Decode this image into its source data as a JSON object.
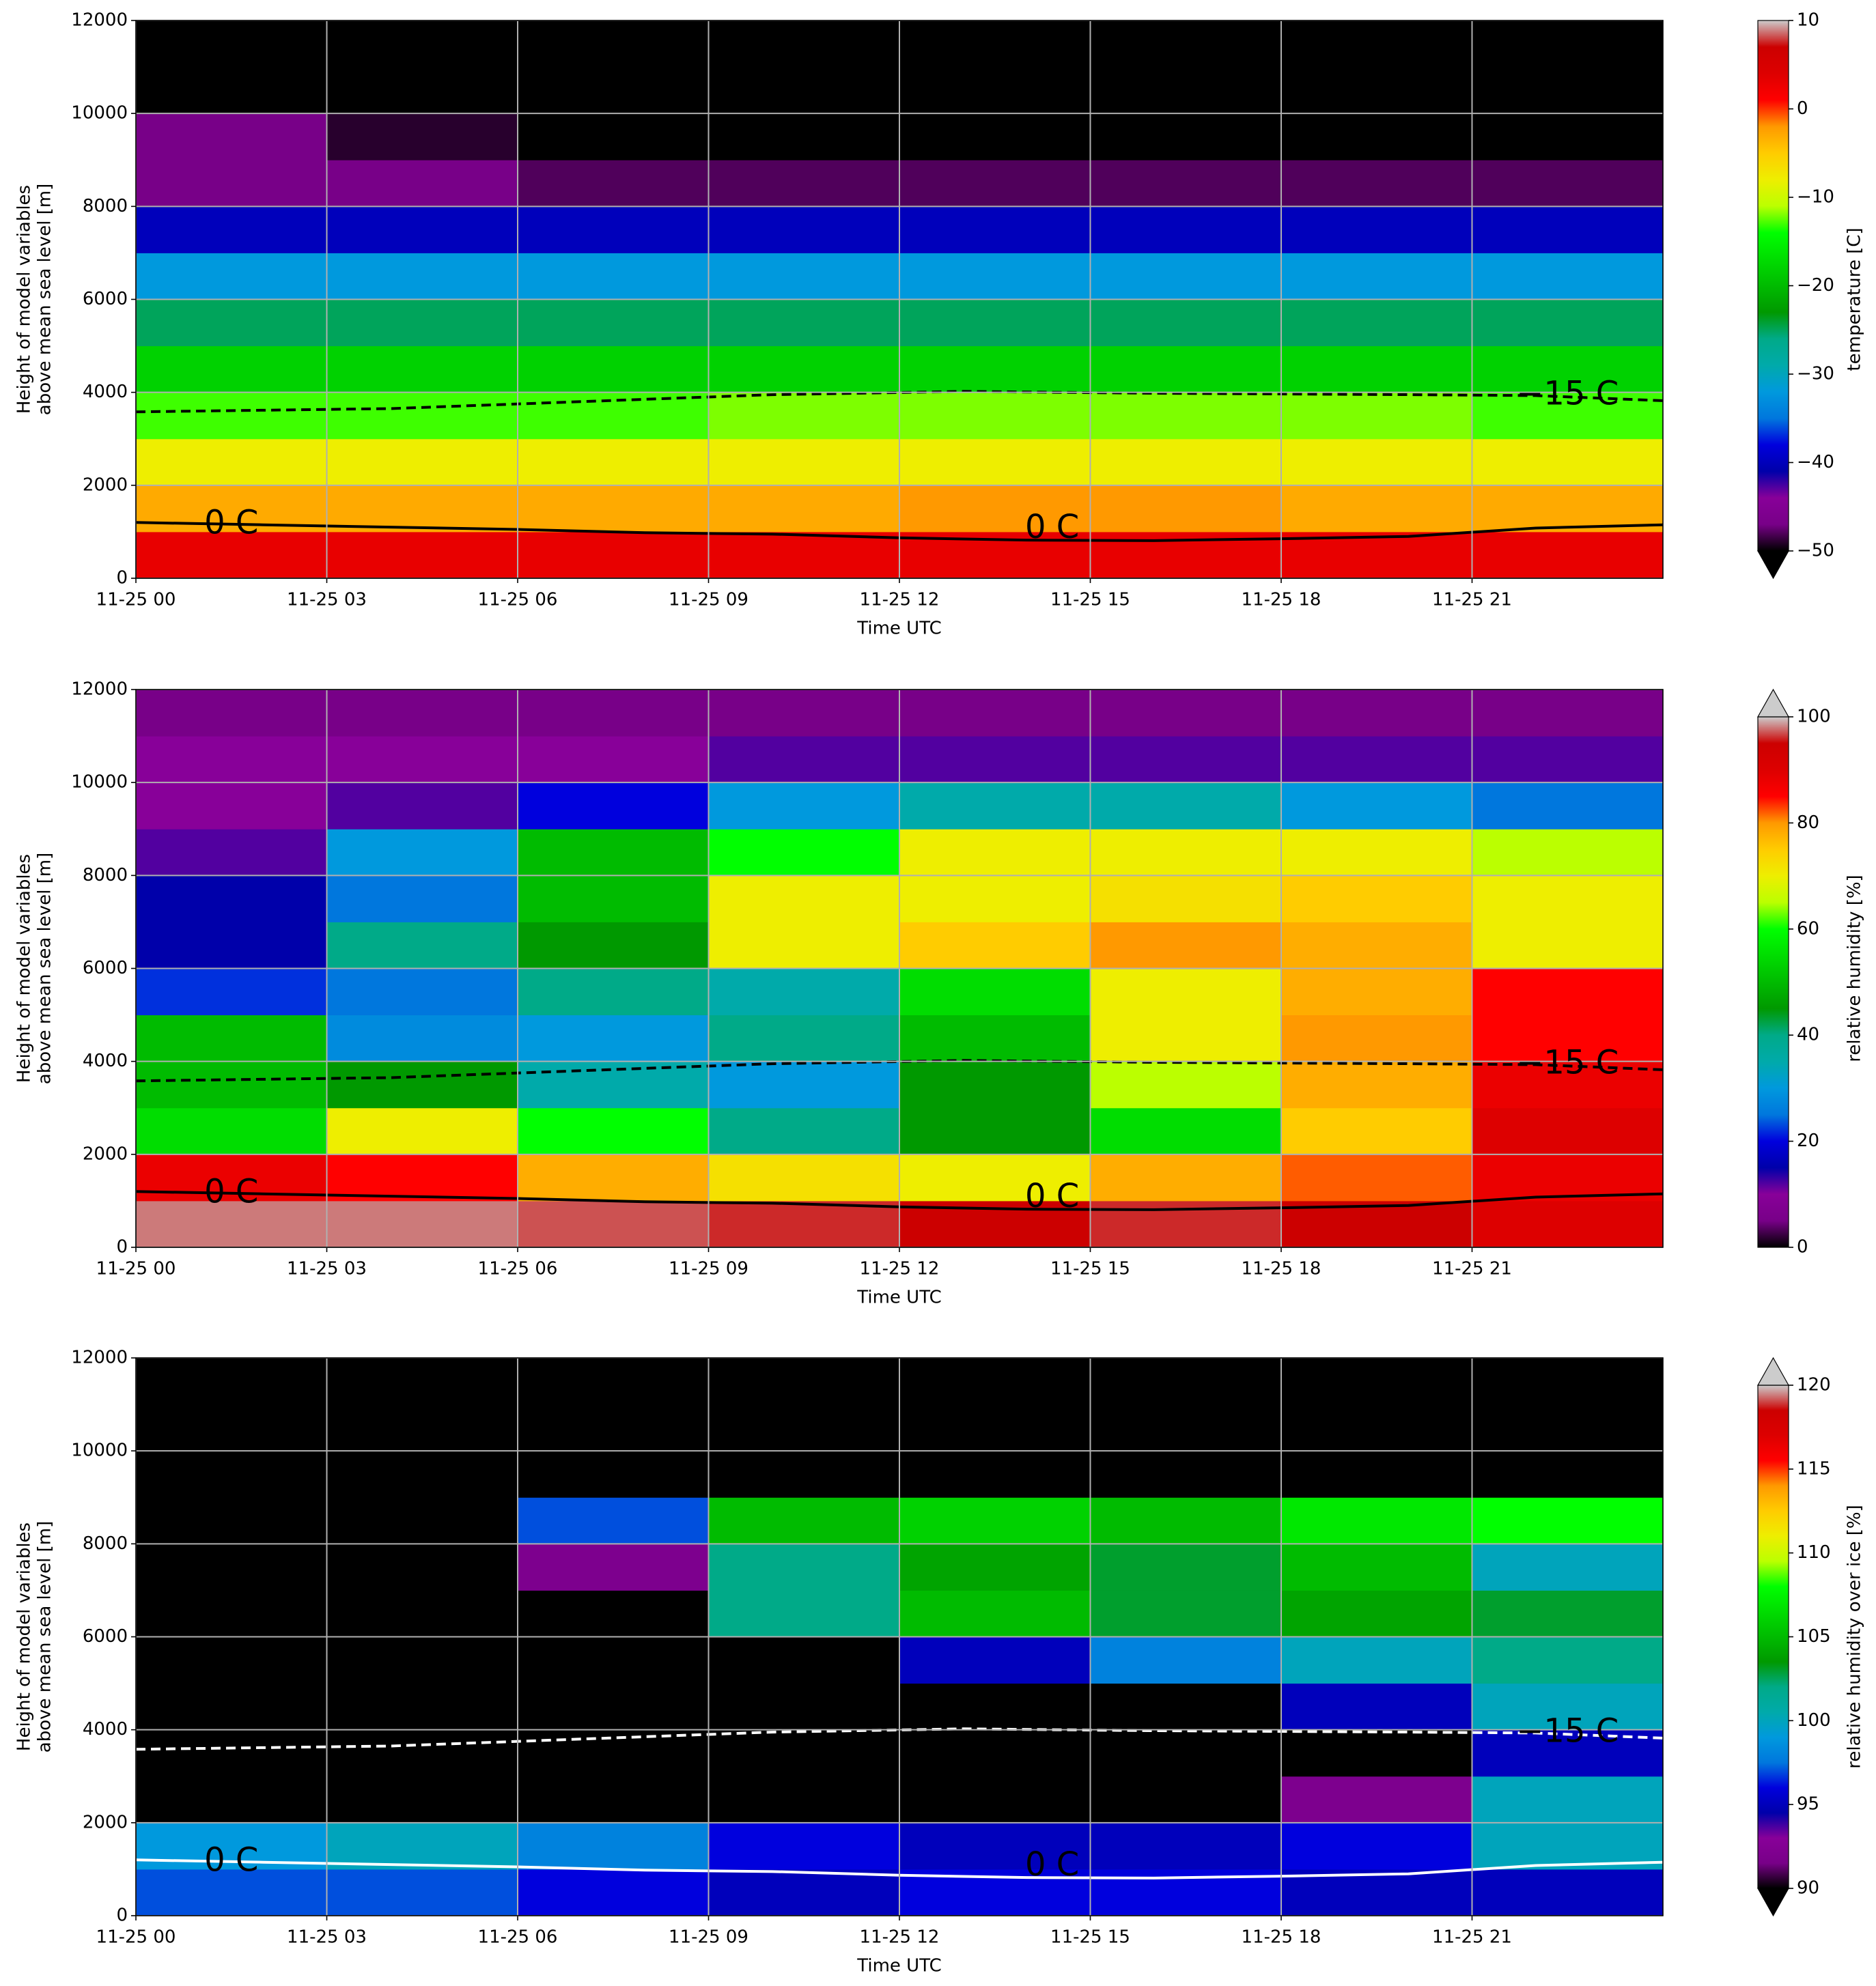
{
  "chart_data": [
    {
      "type": "heatmap",
      "xlabel": "Time UTC",
      "ylabel": [
        "Height of model variables",
        "above mean sea level [m]"
      ],
      "xlim": [
        0,
        24
      ],
      "ylim": [
        0,
        12000
      ],
      "xticks": [
        {
          "value": 0,
          "label": "11-25 00"
        },
        {
          "value": 3,
          "label": "11-25 03"
        },
        {
          "value": 6,
          "label": "11-25 06"
        },
        {
          "value": 9,
          "label": "11-25 09"
        },
        {
          "value": 12,
          "label": "11-25 12"
        },
        {
          "value": 15,
          "label": "11-25 15"
        },
        {
          "value": 18,
          "label": "11-25 18"
        },
        {
          "value": 21,
          "label": "11-25 21"
        }
      ],
      "yticks": [
        0,
        2000,
        4000,
        6000,
        8000,
        10000,
        12000
      ],
      "grid": true,
      "x_edges": [
        0,
        3,
        6,
        9,
        12,
        15,
        18,
        21,
        24
      ],
      "y_edges": [
        0,
        1000,
        2000,
        3000,
        4000,
        5000,
        6000,
        7000,
        8000,
        9000,
        10000,
        11000,
        12000
      ],
      "z": [
        [
          3,
          3,
          3,
          3,
          3,
          3,
          3,
          3
        ],
        [
          -3,
          -3,
          -3,
          -3,
          -2,
          -2,
          -3,
          -3
        ],
        [
          -8,
          -8,
          -8,
          -8,
          -8,
          -8,
          -8,
          -8
        ],
        [
          -13,
          -13,
          -13,
          -12,
          -12,
          -12,
          -12,
          -13
        ],
        [
          -18,
          -18,
          -18,
          -18,
          -18,
          -18,
          -18,
          -18
        ],
        [
          -25,
          -25,
          -25,
          -25,
          -25,
          -25,
          -25,
          -25
        ],
        [
          -32,
          -32,
          -32,
          -32,
          -32,
          -32,
          -32,
          -32
        ],
        [
          -40,
          -40,
          -40,
          -40,
          -40,
          -40,
          -40,
          -40
        ],
        [
          -47,
          -47,
          -48,
          -48,
          -48,
          -48,
          -48,
          -48
        ],
        [
          -47,
          -49,
          -55,
          -55,
          -55,
          -55,
          -55,
          -55
        ],
        [
          -55,
          -55,
          -55,
          -55,
          -55,
          -55,
          -55,
          -55
        ],
        [
          -55,
          -55,
          -55,
          -55,
          -55,
          -55,
          -55,
          -55
        ]
      ],
      "cmap": [
        "#000000",
        "#780088",
        "#880099",
        "#0000aa",
        "#0000dd",
        "#0077dd",
        "#0099dd",
        "#00aaaa",
        "#00aa88",
        "#009900",
        "#00bb00",
        "#00dd00",
        "#00ff00",
        "#bbff00",
        "#eeee00",
        "#ffcc00",
        "#ff9900",
        "#ff0000",
        "#dd0000",
        "#cc0000",
        "#cccccc"
      ],
      "under_color": "#000000",
      "over_color": "#cccccc",
      "colorbar": {
        "label": "temperature [C]",
        "lim": [
          -50,
          10
        ],
        "extend": "min",
        "ticks": [
          {
            "value": -50,
            "label": "−50"
          },
          {
            "value": -40,
            "label": "−40"
          },
          {
            "value": -30,
            "label": "−30"
          },
          {
            "value": -20,
            "label": "−20"
          },
          {
            "value": -10,
            "label": "−10"
          },
          0,
          10
        ]
      },
      "contour_color": "#000000",
      "contours": [
        {
          "label": "0 C",
          "style": "solid",
          "x": [
            0,
            2,
            4,
            6,
            8,
            10,
            12,
            14,
            16,
            18,
            20,
            22,
            24
          ],
          "y": [
            1200,
            1150,
            1100,
            1050,
            980,
            950,
            870,
            820,
            810,
            850,
            900,
            1080,
            1150
          ]
        },
        {
          "label": "−15 C",
          "style": "dashed",
          "x": [
            0,
            4,
            8,
            10,
            13,
            16,
            20,
            22,
            24
          ],
          "y": [
            3580,
            3650,
            3850,
            3950,
            4020,
            3980,
            3950,
            3930,
            3820
          ]
        }
      ]
    },
    {
      "type": "heatmap",
      "xlabel": "Time UTC",
      "ylabel": [
        "Height of model variables",
        "above mean sea level [m]"
      ],
      "xlim": [
        0,
        24
      ],
      "ylim": [
        0,
        12000
      ],
      "xticks": [
        {
          "value": 0,
          "label": "11-25 00"
        },
        {
          "value": 3,
          "label": "11-25 03"
        },
        {
          "value": 6,
          "label": "11-25 06"
        },
        {
          "value": 9,
          "label": "11-25 09"
        },
        {
          "value": 12,
          "label": "11-25 12"
        },
        {
          "value": 15,
          "label": "11-25 15"
        },
        {
          "value": 18,
          "label": "11-25 18"
        },
        {
          "value": 21,
          "label": "11-25 21"
        }
      ],
      "yticks": [
        0,
        2000,
        4000,
        6000,
        8000,
        10000,
        12000
      ],
      "grid": true,
      "x_edges": [
        0,
        3,
        6,
        9,
        12,
        15,
        18,
        21,
        24
      ],
      "y_edges": [
        0,
        1000,
        2000,
        3000,
        4000,
        5000,
        6000,
        7000,
        8000,
        9000,
        10000,
        11000,
        12000
      ],
      "z": [
        [
          98,
          98,
          97,
          96,
          95,
          96,
          95,
          90
        ],
        [
          88,
          85,
          78,
          72,
          70,
          78,
          82,
          88
        ],
        [
          55,
          70,
          60,
          40,
          45,
          55,
          75,
          90
        ],
        [
          50,
          45,
          35,
          30,
          45,
          65,
          78,
          88
        ],
        [
          50,
          28,
          30,
          40,
          50,
          70,
          80,
          85
        ],
        [
          22,
          25,
          40,
          35,
          55,
          70,
          78,
          85
        ],
        [
          15,
          40,
          45,
          70,
          75,
          80,
          78,
          70
        ],
        [
          15,
          25,
          50,
          70,
          70,
          72,
          75,
          70
        ],
        [
          12,
          30,
          50,
          60,
          70,
          70,
          70,
          65
        ],
        [
          10,
          12,
          20,
          30,
          35,
          35,
          30,
          25
        ],
        [
          10,
          10,
          10,
          12,
          12,
          12,
          12,
          12
        ],
        [
          5,
          5,
          5,
          5,
          5,
          5,
          5,
          5
        ]
      ],
      "cmap": [
        "#000000",
        "#780088",
        "#880099",
        "#0000aa",
        "#0000dd",
        "#0077dd",
        "#0099dd",
        "#00aaaa",
        "#00aa88",
        "#009900",
        "#00bb00",
        "#00dd00",
        "#00ff00",
        "#bbff00",
        "#eeee00",
        "#ffcc00",
        "#ff9900",
        "#ff0000",
        "#dd0000",
        "#cc0000",
        "#cccccc"
      ],
      "under_color": "#000000",
      "over_color": "#cccccc",
      "colorbar": {
        "label": "relative humidity [%]",
        "lim": [
          0,
          100
        ],
        "extend": "max",
        "ticks": [
          0,
          20,
          40,
          60,
          80,
          100
        ]
      },
      "contour_color": "#000000",
      "contours": [
        {
          "label": "0 C",
          "style": "solid",
          "x": [
            0,
            2,
            4,
            6,
            8,
            10,
            12,
            14,
            16,
            18,
            20,
            22,
            24
          ],
          "y": [
            1200,
            1150,
            1100,
            1050,
            980,
            950,
            870,
            820,
            810,
            850,
            900,
            1080,
            1150
          ]
        },
        {
          "label": "−15 C",
          "style": "dashed",
          "x": [
            0,
            4,
            8,
            10,
            13,
            16,
            20,
            22,
            24
          ],
          "y": [
            3580,
            3650,
            3850,
            3950,
            4020,
            3980,
            3950,
            3930,
            3820
          ]
        }
      ]
    },
    {
      "type": "heatmap",
      "xlabel": "Time UTC",
      "ylabel": [
        "Height of model variables",
        "above mean sea level [m]"
      ],
      "xlim": [
        0,
        24
      ],
      "ylim": [
        0,
        12000
      ],
      "xticks": [
        {
          "value": 0,
          "label": "11-25 00"
        },
        {
          "value": 3,
          "label": "11-25 03"
        },
        {
          "value": 6,
          "label": "11-25 06"
        },
        {
          "value": 9,
          "label": "11-25 09"
        },
        {
          "value": 12,
          "label": "11-25 12"
        },
        {
          "value": 15,
          "label": "11-25 15"
        },
        {
          "value": 18,
          "label": "11-25 18"
        },
        {
          "value": 21,
          "label": "11-25 21"
        }
      ],
      "yticks": [
        0,
        2000,
        4000,
        6000,
        8000,
        10000,
        12000
      ],
      "grid": true,
      "x_edges": [
        0,
        3,
        6,
        9,
        12,
        15,
        18,
        21,
        24
      ],
      "y_edges": [
        0,
        1000,
        2000,
        3000,
        4000,
        5000,
        6000,
        7000,
        8000,
        9000,
        10000,
        11000,
        12000
      ],
      "z": [
        [
          97,
          97,
          96,
          95,
          96,
          96,
          95,
          95
        ],
        [
          99,
          100,
          98,
          96,
          95,
          95,
          96,
          100
        ],
        [
          85,
          85,
          85,
          85,
          85,
          85,
          92,
          100
        ],
        [
          85,
          85,
          85,
          85,
          85,
          85,
          88,
          95
        ],
        [
          85,
          85,
          85,
          85,
          85,
          90,
          95,
          100
        ],
        [
          85,
          85,
          85,
          85,
          95,
          98,
          100,
          102
        ],
        [
          85,
          85,
          85,
          102,
          105,
          103,
          104,
          103
        ],
        [
          85,
          85,
          92,
          102,
          104,
          103,
          105,
          100
        ],
        [
          85,
          85,
          97,
          105,
          106,
          105,
          107,
          108
        ],
        [
          85,
          85,
          85,
          85,
          85,
          85,
          85,
          85
        ],
        [
          85,
          85,
          85,
          85,
          85,
          85,
          85,
          85
        ],
        [
          85,
          85,
          85,
          85,
          85,
          85,
          85,
          85
        ]
      ],
      "cmap": [
        "#000000",
        "#780088",
        "#880099",
        "#0000aa",
        "#0000dd",
        "#0077dd",
        "#0099dd",
        "#00aaaa",
        "#00aa88",
        "#009900",
        "#00bb00",
        "#00dd00",
        "#00ff00",
        "#bbff00",
        "#eeee00",
        "#ffcc00",
        "#ff9900",
        "#ff0000",
        "#dd0000",
        "#cc0000",
        "#cccccc"
      ],
      "under_color": "#000000",
      "over_color": "#cccccc",
      "colorbar": {
        "label": "relative humidity over ice [%]",
        "lim": [
          90,
          120
        ],
        "extend": "both",
        "ticks": [
          90,
          95,
          100,
          105,
          110,
          115,
          120
        ]
      },
      "contour_color": "#ffffff",
      "contours": [
        {
          "label": "0 C",
          "style": "solid",
          "x": [
            0,
            2,
            4,
            6,
            8,
            10,
            12,
            14,
            16,
            18,
            20,
            22,
            24
          ],
          "y": [
            1200,
            1150,
            1100,
            1050,
            980,
            950,
            870,
            820,
            810,
            850,
            900,
            1080,
            1150
          ]
        },
        {
          "label": "−15 C",
          "style": "dashed",
          "x": [
            0,
            4,
            8,
            10,
            13,
            16,
            20,
            22,
            24
          ],
          "y": [
            3580,
            3650,
            3850,
            3950,
            4020,
            3980,
            3950,
            3930,
            3820
          ]
        }
      ]
    }
  ]
}
